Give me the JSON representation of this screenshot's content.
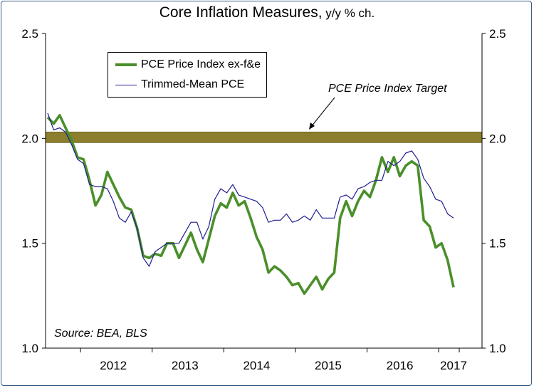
{
  "title_main": "Core Inflation Measures,",
  "title_sub": " y/y % ch.",
  "source": "Source: BEA, BLS",
  "target_label": "PCE Price Index Target",
  "colors": {
    "pce": "#4a8f2a",
    "trimmed": "#1f1f8f",
    "target_band": "#8b7f2e",
    "target_band_edge": "#6f661f"
  },
  "chart_data": {
    "type": "line",
    "ylim": [
      1.0,
      2.5
    ],
    "yticks": [
      "1.0",
      "1.5",
      "2.0",
      "2.5"
    ],
    "x_tick_labels": [
      "2012",
      "2013",
      "2014",
      "2015",
      "2016",
      "2017"
    ],
    "x_start": "2011-07",
    "x_end": "2017-04",
    "target_band": [
      1.98,
      2.03
    ],
    "legend_position": "top-left",
    "series": [
      {
        "name": "PCE Price Index ex-f&e",
        "values": [
          2.1,
          2.07,
          2.11,
          2.05,
          1.99,
          1.91,
          1.9,
          1.8,
          1.68,
          1.73,
          1.84,
          1.78,
          1.72,
          1.67,
          1.66,
          1.57,
          1.44,
          1.43,
          1.45,
          1.44,
          1.5,
          1.5,
          1.43,
          1.49,
          1.55,
          1.47,
          1.41,
          1.52,
          1.63,
          1.69,
          1.67,
          1.74,
          1.68,
          1.7,
          1.62,
          1.53,
          1.47,
          1.36,
          1.39,
          1.37,
          1.34,
          1.3,
          1.31,
          1.26,
          1.3,
          1.34,
          1.28,
          1.33,
          1.36,
          1.62,
          1.7,
          1.63,
          1.7,
          1.75,
          1.72,
          1.8,
          1.91,
          1.84,
          1.91,
          1.82,
          1.87,
          1.89,
          1.87,
          1.61,
          1.58,
          1.48,
          1.5,
          1.42,
          1.29
        ]
      },
      {
        "name": "Trimmed-Mean PCE",
        "values": [
          2.12,
          2.04,
          2.05,
          2.03,
          1.97,
          1.9,
          1.88,
          1.78,
          1.77,
          1.77,
          1.76,
          1.7,
          1.62,
          1.6,
          1.65,
          1.57,
          1.43,
          1.39,
          1.46,
          1.48,
          1.5,
          1.5,
          1.5,
          1.55,
          1.6,
          1.6,
          1.52,
          1.58,
          1.71,
          1.76,
          1.74,
          1.78,
          1.73,
          1.72,
          1.71,
          1.7,
          1.67,
          1.6,
          1.61,
          1.61,
          1.64,
          1.6,
          1.61,
          1.63,
          1.61,
          1.66,
          1.62,
          1.62,
          1.62,
          1.72,
          1.73,
          1.71,
          1.76,
          1.77,
          1.79,
          1.8,
          1.8,
          1.89,
          1.87,
          1.89,
          1.93,
          1.94,
          1.9,
          1.81,
          1.77,
          1.71,
          1.7,
          1.64,
          1.62
        ]
      }
    ]
  }
}
